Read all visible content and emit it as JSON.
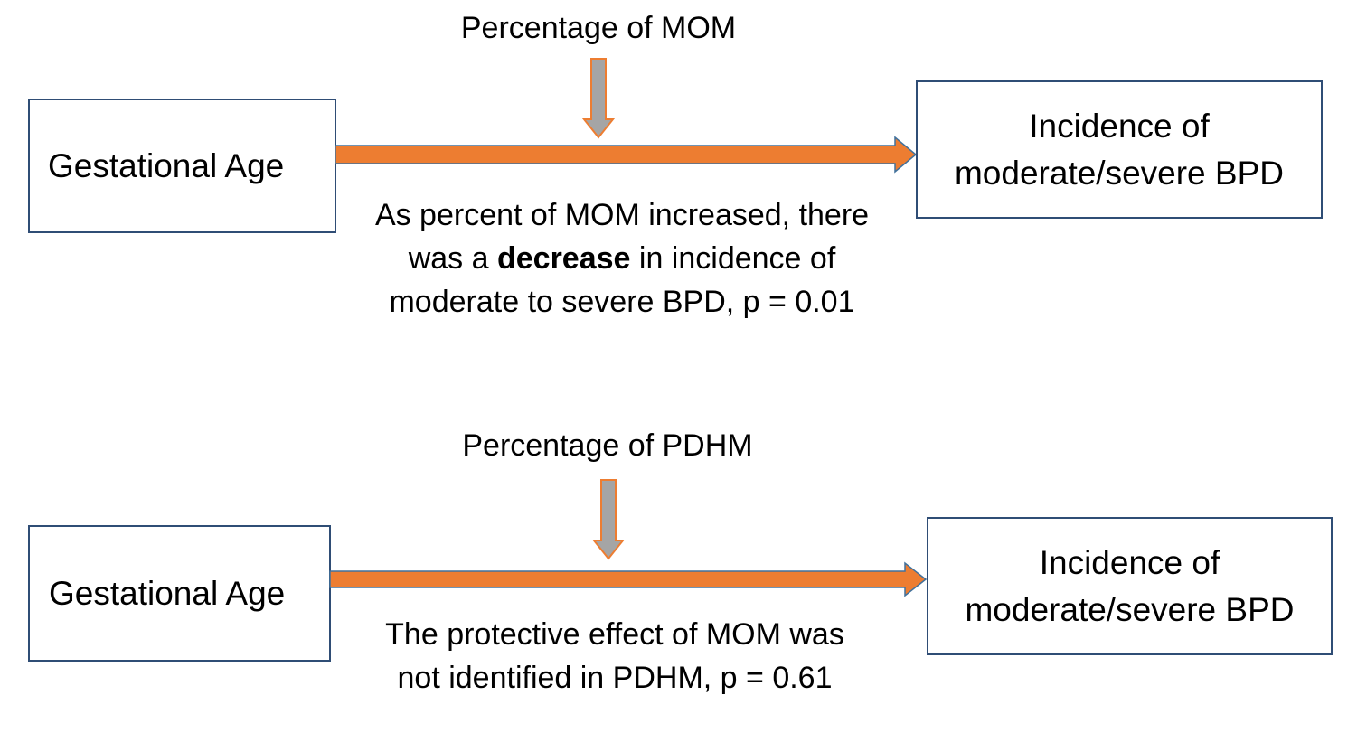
{
  "colors": {
    "main_arrow": "#ed7d31",
    "arrow_outline": "#41719c",
    "moderator_arrow": "#a5a5a5",
    "moderator_outline": "#ed7d31",
    "box_border": "#2f4d75"
  },
  "top": {
    "moderator_label": "Percentage of MOM",
    "source_box": "Gestational Age",
    "target_box_line1": "Incidence of",
    "target_box_line2": "moderate/severe BPD",
    "caption_line1": "As percent of MOM increased, there",
    "caption_line2_pre": "was a ",
    "caption_line2_bold": "decrease",
    "caption_line2_post": " in incidence of",
    "caption_line3": "moderate to severe BPD, p = 0.01"
  },
  "bottom": {
    "moderator_label": "Percentage of PDHM",
    "source_box": "Gestational Age",
    "target_box_line1": "Incidence of",
    "target_box_line2": "moderate/severe BPD",
    "caption_line1": "The protective effect of MOM was",
    "caption_line2": "not identified in PDHM, p = 0.61"
  }
}
